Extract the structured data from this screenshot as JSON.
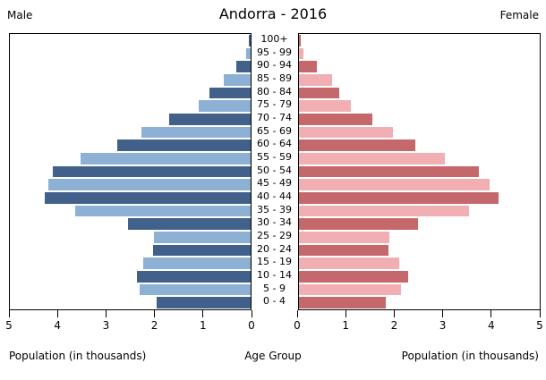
{
  "title": "Andorra - 2016",
  "labels": {
    "male": "Male",
    "female": "Female",
    "xlabel_left": "Population (in thousands)",
    "xlabel_right": "Population (in thousands)",
    "age_group": "Age Group"
  },
  "chart_data": {
    "type": "bar",
    "variant": "population-pyramid",
    "title": "Andorra - 2016",
    "categories": [
      "0 - 4",
      "5 - 9",
      "10 - 14",
      "15 - 19",
      "20 - 24",
      "25 - 29",
      "30 - 34",
      "35 - 39",
      "40 - 44",
      "45 - 49",
      "50 - 54",
      "55 - 59",
      "60 - 64",
      "65 - 69",
      "70 - 74",
      "75 - 79",
      "80 - 84",
      "85 - 89",
      "90 - 94",
      "95 - 99",
      "100+"
    ],
    "series": [
      {
        "name": "Male",
        "side": "left",
        "values": [
          1.95,
          2.3,
          2.36,
          2.24,
          2.03,
          2.01,
          2.55,
          3.65,
          4.27,
          4.21,
          4.11,
          3.54,
          2.77,
          2.26,
          1.69,
          1.07,
          0.85,
          0.56,
          0.3,
          0.1,
          0.03
        ]
      },
      {
        "name": "Female",
        "side": "right",
        "values": [
          1.8,
          2.11,
          2.27,
          2.09,
          1.85,
          1.87,
          2.48,
          3.53,
          4.15,
          3.95,
          3.73,
          3.03,
          2.42,
          1.96,
          1.53,
          1.07,
          0.84,
          0.68,
          0.38,
          0.09,
          0.04
        ]
      }
    ],
    "xlabel": "Population (in thousands)",
    "ylabel": "Age Group",
    "xlim": [
      0,
      5
    ],
    "male_tick_labels": [
      "5",
      "4",
      "3",
      "2",
      "1",
      "0"
    ],
    "female_tick_labels": [
      "0",
      "1",
      "2",
      "3",
      "4",
      "5"
    ],
    "grid": false,
    "legend": "none",
    "colors": {
      "male_dark": "#41618b",
      "male_light": "#8db0d5",
      "female_dark": "#c5686c",
      "female_light": "#f2afb3"
    }
  }
}
